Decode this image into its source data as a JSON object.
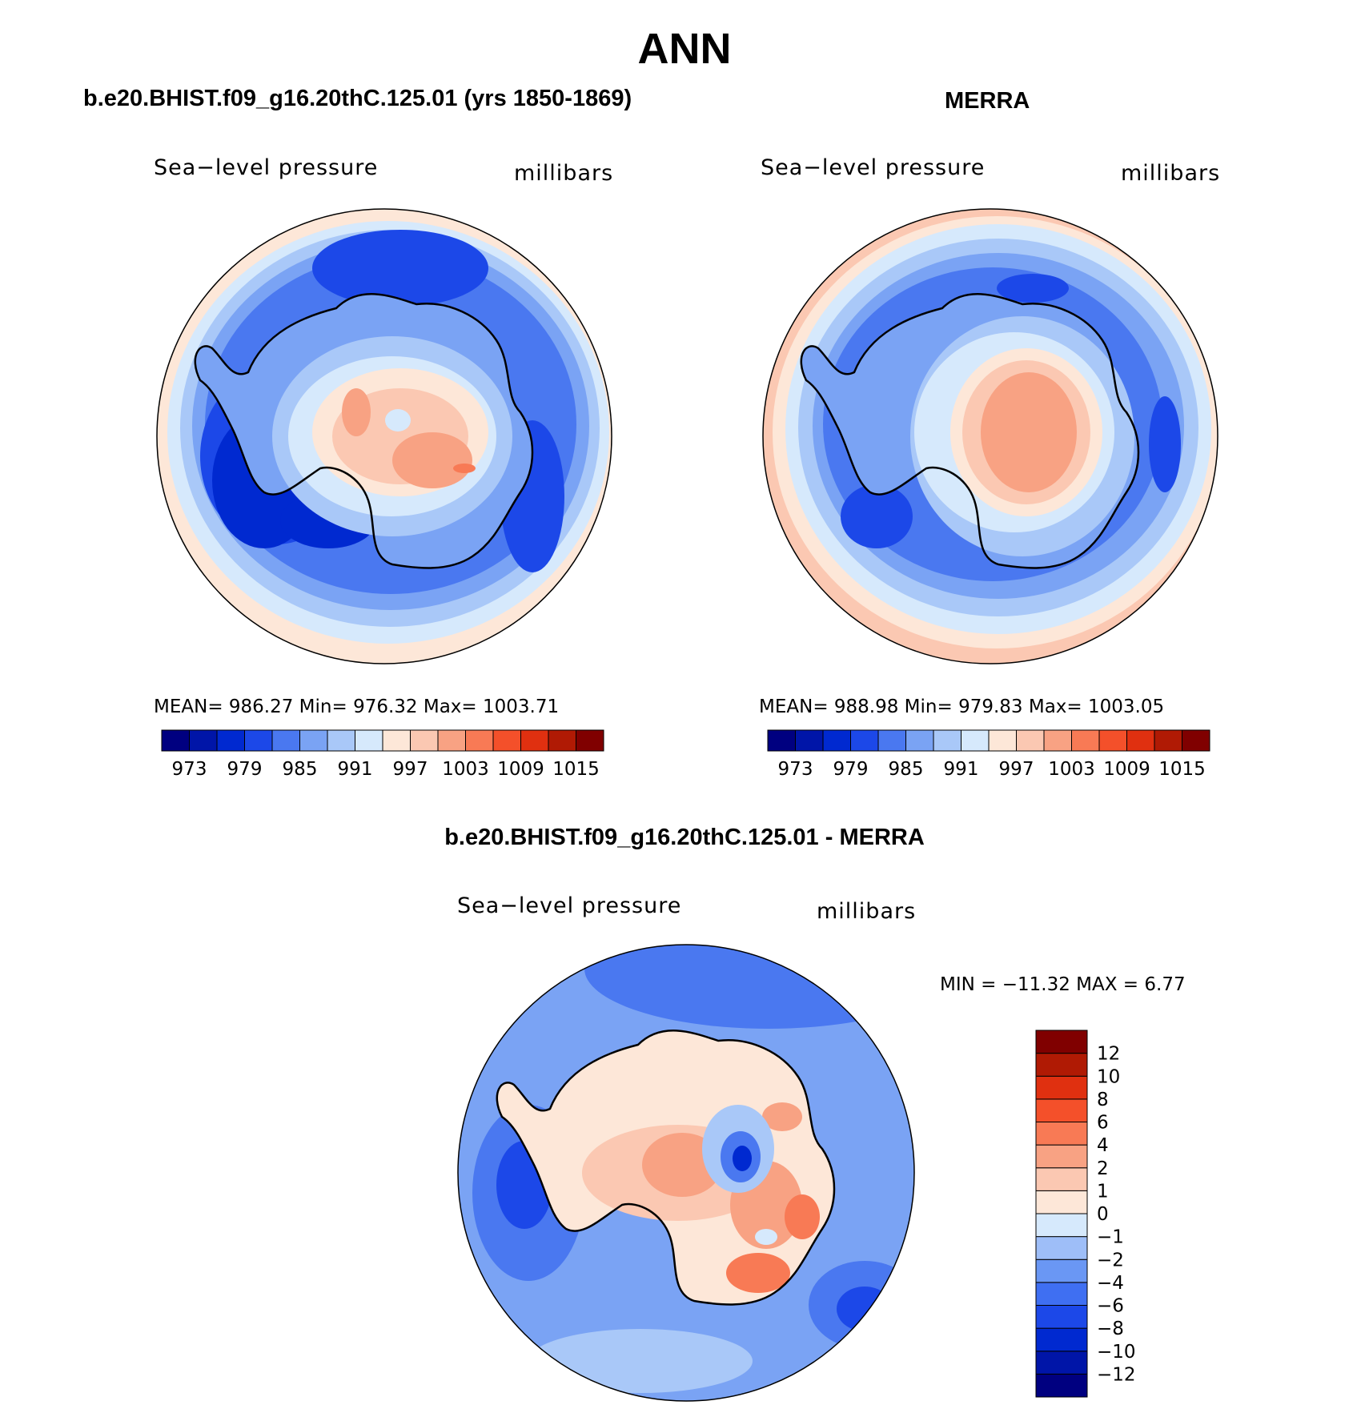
{
  "figure": {
    "title": "ANN"
  },
  "panels": [
    {
      "id": "model",
      "title": "b.e20.BHIST.f09_g16.20thC.125.01 (yrs 1850-1869)",
      "left_label": "Sea−level pressure",
      "right_label": "millibars",
      "stats": "MEAN=  986.27   Min=  976.32   Max=  1003.71"
    },
    {
      "id": "obs",
      "title": "MERRA",
      "left_label": "Sea−level pressure",
      "right_label": "millibars",
      "stats": "MEAN=  988.98   Min=  979.83   Max=  1003.05"
    },
    {
      "id": "diff",
      "title": "b.e20.BHIST.f09_g16.20thC.125.01 - MERRA",
      "left_label": "Sea−level pressure",
      "right_label": "millibars",
      "stats": "MIN  =  −11.32  MAX  =     6.77"
    }
  ],
  "colorbars": {
    "absolute": {
      "colors": [
        "#000080",
        "#0015a8",
        "#0029d0",
        "#1c48e8",
        "#4a78f0",
        "#7aa3f4",
        "#a9c8f8",
        "#d6e9fc",
        "#fde7d8",
        "#fbc8b2",
        "#f8a283",
        "#f87a55",
        "#f4502a",
        "#e03010",
        "#b01a04",
        "#800000"
      ],
      "ticks": [
        "973",
        "979",
        "985",
        "991",
        "997",
        "1003",
        "1009",
        "1015"
      ]
    },
    "difference": {
      "colors": [
        "#000080",
        "#0015a8",
        "#0029d0",
        "#1c48e8",
        "#3f6ff2",
        "#6a97f4",
        "#9ebef8",
        "#d6e9fc",
        "#fde7d8",
        "#fbc8b2",
        "#f8a283",
        "#f87a55",
        "#f4502a",
        "#e03010",
        "#b01a04",
        "#800000"
      ],
      "ticks": [
        "−12",
        "−10",
        "−8",
        "−6",
        "−4",
        "−2",
        "−1",
        "0",
        "1",
        "2",
        "4",
        "6",
        "8",
        "10",
        "12"
      ]
    }
  },
  "map_colors": {
    "deep": "#0029d0",
    "dark": "#1c48e8",
    "mid": "#4a78f0",
    "light": "#7aa3f4",
    "pale": "#a9c8f8",
    "faint": "#d6e9fc",
    "warm1": "#fde7d8",
    "warm2": "#fbc8b2",
    "warm3": "#f8a283",
    "warm4": "#f87a55"
  }
}
